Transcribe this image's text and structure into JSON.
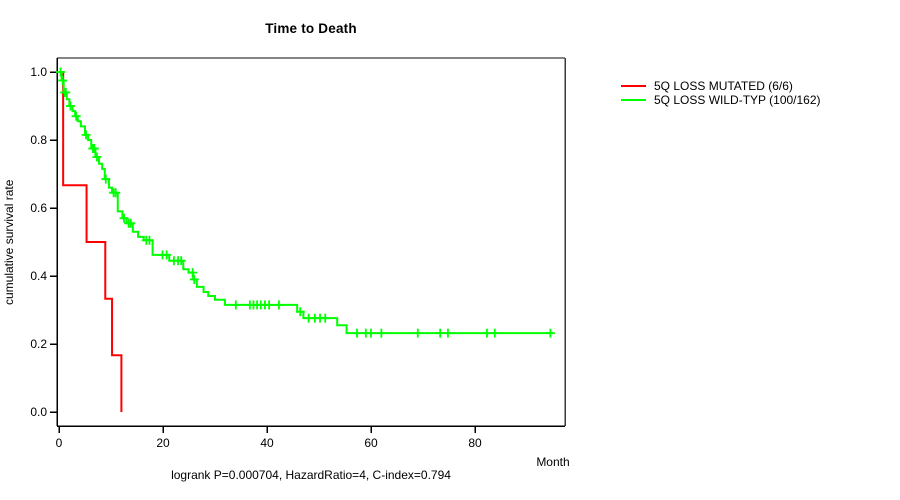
{
  "title": "Time to Death",
  "chart_data": {
    "type": "line",
    "subtype": "kaplan-meier-step-survival",
    "title": "Time to Death",
    "xlabel": "Month",
    "ylabel": "cumulative survival rate",
    "annotation": "logrank P=0.000704, HazardRatio=4, C-index=0.794",
    "xlim": [
      0,
      97
    ],
    "ylim": [
      0.0,
      1.0
    ],
    "x_ticks": [
      0,
      20,
      40,
      60,
      80
    ],
    "x_tick_labels": [
      "0",
      "20",
      "40",
      "60",
      "80"
    ],
    "y_ticks": [
      0.0,
      0.2,
      0.4,
      0.6,
      0.8,
      1.0
    ],
    "y_tick_labels": [
      "0.0",
      "0.2",
      "0.4",
      "0.6",
      "0.8",
      "1.0"
    ],
    "grid": false,
    "legend_position": "right-outside",
    "colors": {
      "mutated": "#ff0000",
      "wildtype": "#00ff00",
      "axis": "#000000",
      "box_top": "#848484",
      "box_right": "#3a3a3a",
      "text": "#000000",
      "background": "#ffffff"
    },
    "series": [
      {
        "name": "5Q LOSS MUTATED (6/6)",
        "color_key": "mutated",
        "start": [
          0,
          1.0
        ],
        "drops": [
          [
            0.8,
            0.667
          ],
          [
            5.3,
            0.5
          ],
          [
            8.9,
            0.333
          ],
          [
            10.2,
            0.167
          ],
          [
            12.0,
            0.0
          ]
        ],
        "end_month": 12.0,
        "censors": []
      },
      {
        "name": "5Q LOSS WILD-TYP (100/162)",
        "color_key": "wildtype",
        "start": [
          0,
          1.0
        ],
        "drops": [
          [
            0.5,
            0.975
          ],
          [
            0.9,
            0.94
          ],
          [
            1.5,
            0.92
          ],
          [
            2.0,
            0.9
          ],
          [
            2.6,
            0.885
          ],
          [
            3.1,
            0.87
          ],
          [
            3.6,
            0.855
          ],
          [
            4.2,
            0.84
          ],
          [
            5.0,
            0.815
          ],
          [
            5.6,
            0.8
          ],
          [
            6.2,
            0.775
          ],
          [
            7.0,
            0.75
          ],
          [
            7.7,
            0.73
          ],
          [
            8.3,
            0.715
          ],
          [
            8.8,
            0.685
          ],
          [
            9.6,
            0.66
          ],
          [
            10.2,
            0.645
          ],
          [
            11.3,
            0.59
          ],
          [
            12.2,
            0.57
          ],
          [
            13.0,
            0.555
          ],
          [
            14.2,
            0.53
          ],
          [
            15.2,
            0.515
          ],
          [
            16.3,
            0.505
          ],
          [
            18.0,
            0.462
          ],
          [
            21.2,
            0.445
          ],
          [
            23.9,
            0.42
          ],
          [
            24.9,
            0.41
          ],
          [
            25.8,
            0.39
          ],
          [
            26.5,
            0.368
          ],
          [
            27.8,
            0.353
          ],
          [
            28.7,
            0.341
          ],
          [
            30.0,
            0.33
          ],
          [
            31.9,
            0.315
          ],
          [
            45.8,
            0.295
          ],
          [
            47.0,
            0.276
          ],
          [
            53.5,
            0.255
          ],
          [
            55.3,
            0.232
          ]
        ],
        "end_month": 95,
        "censors": [
          [
            0.3,
            1.0
          ],
          [
            0.7,
            0.975
          ],
          [
            1.1,
            0.94
          ],
          [
            1.3,
            0.94
          ],
          [
            2.2,
            0.9
          ],
          [
            3.3,
            0.87
          ],
          [
            5.2,
            0.815
          ],
          [
            6.5,
            0.775
          ],
          [
            6.8,
            0.775
          ],
          [
            7.3,
            0.75
          ],
          [
            9.0,
            0.685
          ],
          [
            10.5,
            0.645
          ],
          [
            10.9,
            0.645
          ],
          [
            12.5,
            0.57
          ],
          [
            13.4,
            0.555
          ],
          [
            13.8,
            0.555
          ],
          [
            16.8,
            0.505
          ],
          [
            17.4,
            0.505
          ],
          [
            19.9,
            0.462
          ],
          [
            20.7,
            0.462
          ],
          [
            22.1,
            0.445
          ],
          [
            22.9,
            0.445
          ],
          [
            23.5,
            0.445
          ],
          [
            25.7,
            0.41
          ],
          [
            26.0,
            0.39
          ],
          [
            34.0,
            0.315
          ],
          [
            36.7,
            0.315
          ],
          [
            37.4,
            0.315
          ],
          [
            38.1,
            0.315
          ],
          [
            38.8,
            0.315
          ],
          [
            39.6,
            0.315
          ],
          [
            40.4,
            0.315
          ],
          [
            42.3,
            0.315
          ],
          [
            46.4,
            0.295
          ],
          [
            48.0,
            0.276
          ],
          [
            49.2,
            0.276
          ],
          [
            50.2,
            0.276
          ],
          [
            51.2,
            0.276
          ],
          [
            57.3,
            0.232
          ],
          [
            59.0,
            0.232
          ],
          [
            60.0,
            0.232
          ],
          [
            62.0,
            0.232
          ],
          [
            69.0,
            0.232
          ],
          [
            73.3,
            0.232
          ],
          [
            74.8,
            0.232
          ],
          [
            82.3,
            0.232
          ],
          [
            83.8,
            0.232
          ],
          [
            94.5,
            0.232
          ]
        ]
      }
    ]
  }
}
